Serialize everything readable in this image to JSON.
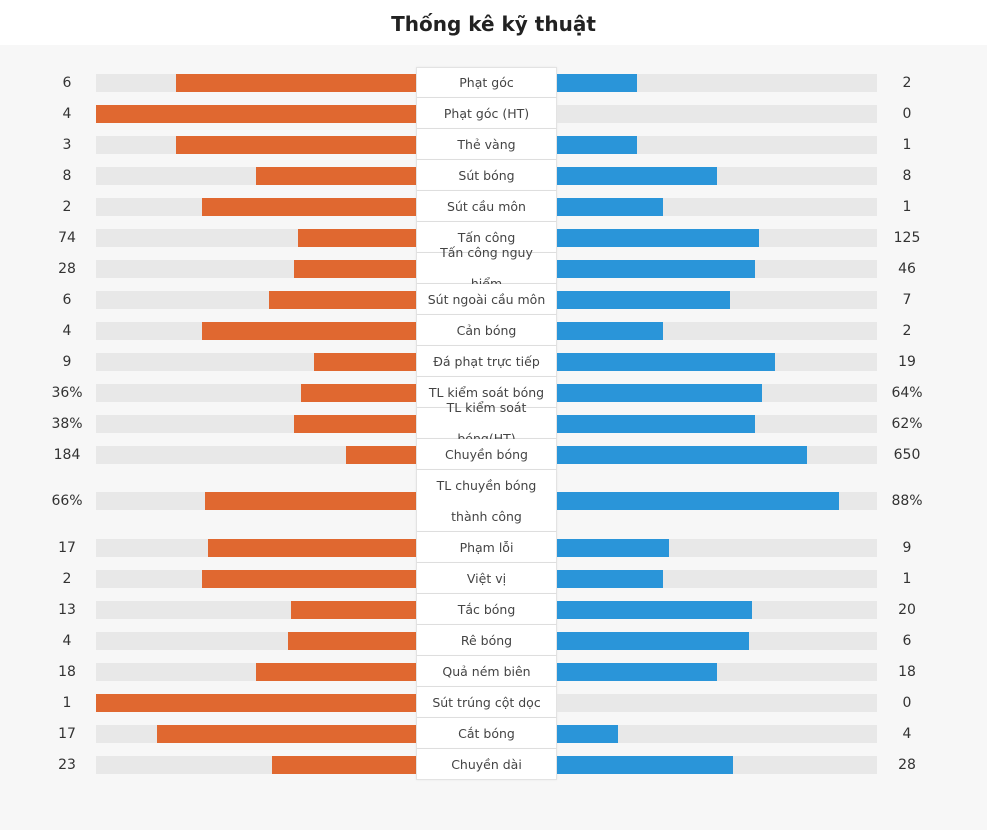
{
  "title": "Thống kê kỹ thuật",
  "colors": {
    "home": "#e06830",
    "away": "#2a95d9",
    "track": "#e8e8e8"
  },
  "stats": [
    {
      "label": "Phạt góc",
      "home": "6",
      "away": "2",
      "home_pct": 75,
      "away_pct": 25
    },
    {
      "label": "Phạt góc (HT)",
      "home": "4",
      "away": "0",
      "home_pct": 100,
      "away_pct": 0
    },
    {
      "label": "Thẻ vàng",
      "home": "3",
      "away": "1",
      "home_pct": 75,
      "away_pct": 25
    },
    {
      "label": "Sút bóng",
      "home": "8",
      "away": "8",
      "home_pct": 50,
      "away_pct": 50
    },
    {
      "label": "Sút cầu môn",
      "home": "2",
      "away": "1",
      "home_pct": 67,
      "away_pct": 33
    },
    {
      "label": "Tấn công",
      "home": "74",
      "away": "125",
      "home_pct": 37,
      "away_pct": 63
    },
    {
      "label": "Tấn công nguy hiểm",
      "home": "28",
      "away": "46",
      "home_pct": 38,
      "away_pct": 62
    },
    {
      "label": "Sút ngoài cầu môn",
      "home": "6",
      "away": "7",
      "home_pct": 46,
      "away_pct": 54
    },
    {
      "label": "Cản bóng",
      "home": "4",
      "away": "2",
      "home_pct": 67,
      "away_pct": 33
    },
    {
      "label": "Đá phạt trực tiếp",
      "home": "9",
      "away": "19",
      "home_pct": 32,
      "away_pct": 68
    },
    {
      "label": "TL kiểm soát bóng",
      "home": "36%",
      "away": "64%",
      "home_pct": 36,
      "away_pct": 64
    },
    {
      "label": "TL kiểm soát bóng(HT)",
      "home": "38%",
      "away": "62%",
      "home_pct": 38,
      "away_pct": 62
    },
    {
      "label": "Chuyền bóng",
      "home": "184",
      "away": "650",
      "home_pct": 22,
      "away_pct": 78
    },
    {
      "label": "TL chuyền bóng thành công",
      "home": "66%",
      "away": "88%",
      "home_pct": 66,
      "away_pct": 88,
      "tall": true
    },
    {
      "label": "Phạm lỗi",
      "home": "17",
      "away": "9",
      "home_pct": 65,
      "away_pct": 35
    },
    {
      "label": "Việt vị",
      "home": "2",
      "away": "1",
      "home_pct": 67,
      "away_pct": 33
    },
    {
      "label": "Tắc bóng",
      "home": "13",
      "away": "20",
      "home_pct": 39,
      "away_pct": 61
    },
    {
      "label": "Rê bóng",
      "home": "4",
      "away": "6",
      "home_pct": 40,
      "away_pct": 60
    },
    {
      "label": "Quả ném biên",
      "home": "18",
      "away": "18",
      "home_pct": 50,
      "away_pct": 50
    },
    {
      "label": "Sút trúng cột dọc",
      "home": "1",
      "away": "0",
      "home_pct": 100,
      "away_pct": 0
    },
    {
      "label": "Cắt bóng",
      "home": "17",
      "away": "4",
      "home_pct": 81,
      "away_pct": 19
    },
    {
      "label": "Chuyền dài",
      "home": "23",
      "away": "28",
      "home_pct": 45,
      "away_pct": 55
    }
  ]
}
